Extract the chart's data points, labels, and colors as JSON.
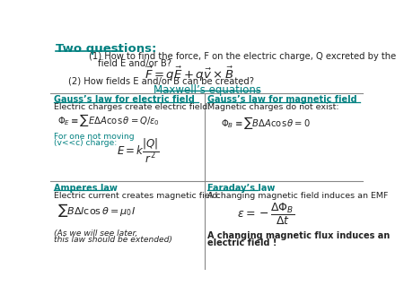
{
  "bg_color": "#ffffff",
  "teal_color": "#008080",
  "black_color": "#222222",
  "title": "Two questions:",
  "q1a": "(1) How to find the force, F on the electric charge, Q excreted by the",
  "q1b": "field E and/or B?",
  "formula1": "$\\vec{F} = q\\vec{E} + q\\vec{v} \\times \\vec{B}$",
  "q2": "(2) How fields E and/or B can be created?",
  "maxwell": "Maxwell’s equations",
  "cell_tl_title": "Gauss’s law for electric field",
  "cell_tl_sub": "Electric charges create electric field:",
  "cell_tl_eq1": "$\\Phi_E \\equiv \\sum E\\Delta A\\cos\\theta = Q/\\varepsilon_0$",
  "cell_tl_note1": "For one not moving",
  "cell_tl_note2": "(v<<c) charge:",
  "cell_tl_eq2": "$E = k\\dfrac{|Q|}{r^2}$",
  "cell_tr_title": "Gauss’s law for magnetic field",
  "cell_tr_sub": "Magnetic charges do not exist:",
  "cell_tr_eq": "$\\Phi_B \\equiv \\sum B\\Delta A\\cos\\theta = 0$",
  "cell_bl_title": "Amperes law",
  "cell_bl_sub": "Electric current creates magnetic field:",
  "cell_bl_eq": "$\\sum B\\Delta l\\cos\\theta = \\mu_0 I$",
  "cell_bl_note1": "(As we will see later,",
  "cell_bl_note2": "this law should be extended)",
  "cell_br_title": "Faraday’s law",
  "cell_br_sub": "A changing magnetic field induces an EMF",
  "cell_br_eq": "$\\varepsilon = -\\dfrac{\\Delta\\Phi_B}{\\Delta t}$",
  "cell_br_note1": "A changing magnetic flux induces an",
  "cell_br_note2": "electric field !"
}
